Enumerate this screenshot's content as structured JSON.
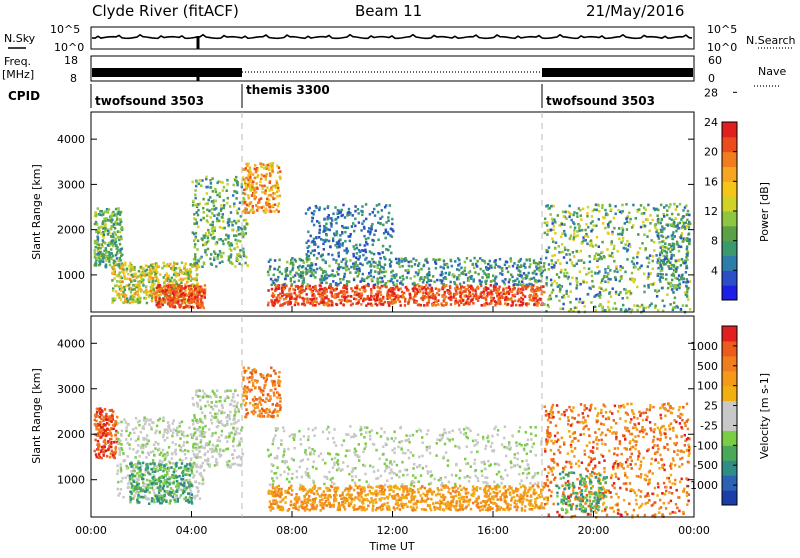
{
  "header": {
    "radar": "Clyde River (fitACF)",
    "beam": "Beam 11",
    "date": "21/May/2016"
  },
  "side_labels": {
    "nsky": "N.Sky",
    "nsearch": "N.Search",
    "freq_top": "Freq.",
    "freq_unit": "[MHz]",
    "nave": "Nave",
    "cpid": "CPID"
  },
  "chart_data": [
    {
      "type": "line",
      "name": "noise",
      "y_left_ticks": [
        "10^5",
        "10^0"
      ],
      "y_right_ticks": [
        "10^5",
        "10^0"
      ],
      "x_range": [
        0,
        24
      ]
    },
    {
      "type": "line",
      "name": "frequency-nave",
      "y_left_ticks": [
        "18",
        "8"
      ],
      "y_right_ticks": [
        "60",
        "0"
      ],
      "x_range": [
        0,
        24
      ]
    },
    {
      "type": "table",
      "name": "cpid",
      "segments": [
        {
          "label": "twofsound 3503",
          "start": 0,
          "end": 6
        },
        {
          "label": "themis 3300",
          "start": 6,
          "end": 18
        },
        {
          "label": "twofsound 3503",
          "start": 18,
          "end": 24
        }
      ]
    },
    {
      "type": "heatmap",
      "name": "power",
      "ylabel": "Slant Range [km]",
      "yticks": [
        "1000",
        "2000",
        "3000",
        "4000"
      ],
      "ylim": [
        180,
        4600
      ],
      "xlim": [
        0,
        24
      ],
      "colorbar": {
        "label": "Power [dB]",
        "ticks": [
          "4",
          "8",
          "12",
          "16",
          "20",
          "24",
          "28"
        ],
        "colors": [
          "#1e1ee6",
          "#2c4fc7",
          "#2d7dab",
          "#3a9a6e",
          "#5aa045",
          "#8ec63f",
          "#cfd325",
          "#f5c518",
          "#f5a623",
          "#f07d1e",
          "#ec4b1c",
          "#e01f1f"
        ]
      }
    },
    {
      "type": "heatmap",
      "name": "velocity",
      "ylabel": "Slant Range [km]",
      "yticks": [
        "1000",
        "2000",
        "3000",
        "4000"
      ],
      "ylim": [
        180,
        4600
      ],
      "xlim": [
        0,
        24
      ],
      "xlabel": "Time UT",
      "xticks": [
        "00:00",
        "04:00",
        "08:00",
        "12:00",
        "16:00",
        "20:00",
        "00:00"
      ],
      "colorbar": {
        "label": "Velocity [m s-1]",
        "ticks": [
          "1000",
          "500",
          "100",
          "25",
          "-25",
          "-100",
          "-500",
          "-1000"
        ],
        "colors": [
          "#1a3ea8",
          "#2a63b3",
          "#2f8c87",
          "#4aa85a",
          "#7ccd46",
          "#c8c8c8",
          "#c8c8c8",
          "#f0b010",
          "#f39a18",
          "#f07d1e",
          "#ec5a1c",
          "#e02020"
        ]
      }
    }
  ]
}
